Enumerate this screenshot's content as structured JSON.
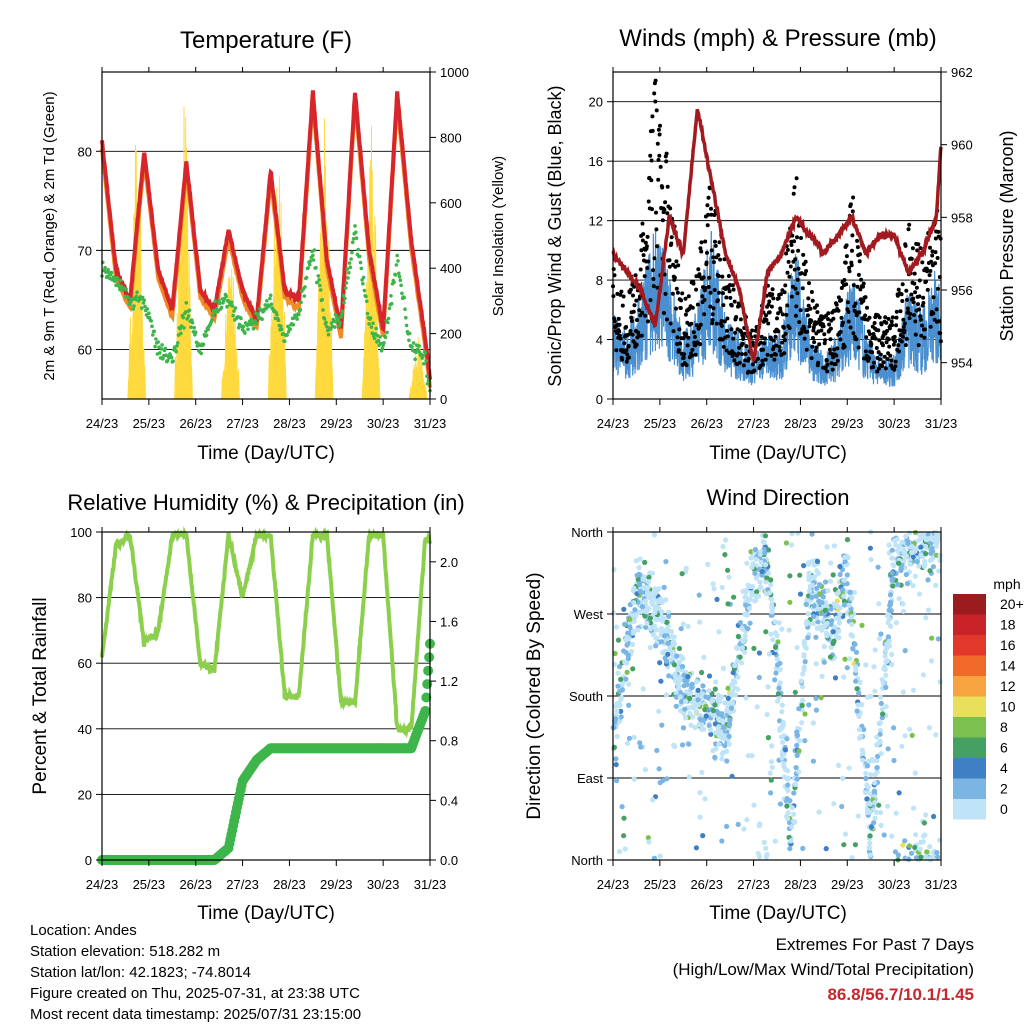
{
  "colors": {
    "red": "#d7262b",
    "orange": "#f08a24",
    "green": "#3db54a",
    "yellow": "#ffd93d",
    "black": "#000000",
    "blue": "#4a90d0",
    "maroon": "#a01a1f",
    "lightgreen": "#8ccf4d"
  },
  "x_ticks": [
    "24/23",
    "25/23",
    "26/23",
    "27/23",
    "28/23",
    "29/23",
    "30/23",
    "31/23"
  ],
  "temperature": {
    "title": "Temperature (F)",
    "xlabel": "Time (Day/UTC)",
    "ylabel_left": "2m & 9m T (Red, Orange) & 2m Td (Green)",
    "ylabel_right": "Solar Insolation (Yellow)",
    "left_ticks": [
      "60",
      "70",
      "80"
    ],
    "right_ticks": [
      "0",
      "200",
      "400",
      "600",
      "800",
      "1000"
    ]
  },
  "winds": {
    "title": "Winds (mph) & Pressure (mb)",
    "xlabel": "Time (Day/UTC)",
    "ylabel_left": "Sonic/Prop Wind & Gust (Blue, Black)",
    "ylabel_right": "Station Pressure (Maroon)",
    "left_ticks": [
      "0",
      "4",
      "8",
      "12",
      "16",
      "20"
    ],
    "right_ticks": [
      "954",
      "956",
      "958",
      "960",
      "962"
    ]
  },
  "humidity": {
    "title": "Relative Humidity (%) & Precipitation (in)",
    "xlabel": "Time (Day/UTC)",
    "ylabel_left": "Percent & Total Rainfall",
    "left_ticks": [
      "0",
      "20",
      "40",
      "60",
      "80",
      "100"
    ],
    "right_ticks": [
      "0.0",
      "0.4",
      "0.8",
      "1.2",
      "1.6",
      "2.0"
    ]
  },
  "direction": {
    "title": "Wind Direction",
    "xlabel": "Time (Day/UTC)",
    "ylabel_left": "Direction (Colored By Speed)",
    "dir_ticks": [
      "North",
      "East",
      "South",
      "West",
      "North"
    ],
    "legend_title": "mph",
    "legend_labels": [
      "20+",
      "18",
      "16",
      "14",
      "12",
      "10",
      "8",
      "6",
      "4",
      "2",
      "0"
    ],
    "legend_colors": [
      "#9b1b1e",
      "#c9232a",
      "#e1382b",
      "#f06a2a",
      "#f7a440",
      "#e8e05a",
      "#7cc04f",
      "#45a163",
      "#3f7fc4",
      "#7ab5e4",
      "#bfe3f7"
    ]
  },
  "info_lines": [
    "Location: Andes",
    "Station elevation: 518.282 m",
    "Station lat/lon: 42.1823; -74.8014",
    "Figure created on Thu, 2025-07-31, at 23:38 UTC",
    "Most recent data timestamp: 2025/07/31 23:15:00"
  ],
  "extremes": {
    "title": "Extremes For Past 7 Days",
    "subtitle": "(High/Low/Max Wind/Total Precipitation)",
    "values": "86.8/56.7/10.1/1.45"
  },
  "chart_data": [
    {
      "type": "line",
      "name": "temperature",
      "x": [
        0,
        0.3,
        0.6,
        0.9,
        1.2,
        1.5,
        1.8,
        2.1,
        2.4,
        2.7,
        3.0,
        3.3,
        3.6,
        3.9,
        4.2,
        4.5,
        4.8,
        5.1,
        5.4,
        5.7,
        6.0,
        6.3,
        6.6,
        6.9,
        7.0
      ],
      "series": [
        {
          "values": [
            81,
            68,
            65,
            80,
            68,
            64,
            79,
            66,
            64,
            72,
            66,
            63,
            78,
            66,
            65,
            86,
            69,
            62,
            86,
            70,
            62,
            86,
            71,
            61,
            57
          ]
        },
        {
          "values": [
            68,
            67,
            65,
            65,
            60,
            59,
            64,
            60,
            64,
            65,
            62,
            63,
            65,
            61,
            64,
            70,
            62,
            63,
            72,
            63,
            60,
            69,
            60,
            59,
            56
          ]
        }
      ],
      "ylim": [
        55,
        88
      ],
      "y2lim": [
        0,
        1000
      ]
    },
    {
      "type": "line",
      "name": "winds",
      "x": [
        0,
        0.3,
        0.6,
        0.9,
        1.2,
        1.5,
        1.8,
        2.1,
        2.4,
        2.7,
        3.0,
        3.3,
        3.6,
        3.9,
        4.2,
        4.5,
        4.8,
        5.1,
        5.4,
        5.7,
        6.0,
        6.3,
        6.6,
        6.9,
        7.0
      ],
      "series": [
        {
          "values": [
            4,
            3,
            5,
            8,
            6,
            3,
            4,
            8,
            4,
            3,
            2,
            3,
            3,
            7,
            3,
            2,
            3,
            6,
            3,
            2,
            2,
            5,
            4,
            6,
            5
          ]
        },
        {
          "values": [
            9,
            6,
            10,
            20,
            14,
            6,
            8,
            14,
            9,
            6,
            4,
            7,
            7,
            14,
            7,
            5,
            6,
            13,
            6,
            5,
            5,
            11,
            9,
            12,
            11
          ]
        }
      ],
      "pressure": [
        957,
        956.5,
        956,
        955,
        958,
        957,
        961,
        959,
        957,
        956,
        954,
        956.5,
        957,
        958,
        957.5,
        957,
        957.5,
        958,
        957,
        957.5,
        957.5,
        956.5,
        957,
        958,
        960
      ],
      "ylim": [
        0,
        22
      ],
      "y2lim": [
        953,
        962
      ]
    },
    {
      "type": "line",
      "name": "humidity_precip",
      "x": [
        0,
        0.3,
        0.6,
        0.9,
        1.2,
        1.5,
        1.8,
        2.1,
        2.4,
        2.7,
        3.0,
        3.3,
        3.6,
        3.9,
        4.2,
        4.5,
        4.8,
        5.1,
        5.4,
        5.7,
        6.0,
        6.3,
        6.6,
        6.9,
        7.0
      ],
      "series": [
        {
          "values": [
            62,
            96,
            99,
            66,
            70,
            99,
            99,
            60,
            58,
            99,
            80,
            99,
            99,
            50,
            50,
            99,
            99,
            48,
            48,
            99,
            99,
            40,
            40,
            98,
            97
          ]
        },
        {
          "values": [
            0,
            0,
            0,
            0,
            0,
            0,
            0,
            0,
            0,
            0.08,
            0.53,
            0.67,
            0.75,
            0.75,
            0.75,
            0.75,
            0.75,
            0.75,
            0.75,
            0.75,
            0.75,
            0.75,
            0.75,
            1.0,
            1.45
          ]
        }
      ],
      "ylim": [
        0,
        100
      ],
      "y2lim": [
        0,
        2.2
      ]
    },
    {
      "type": "scatter",
      "name": "wind_direction",
      "x_range": [
        0,
        7
      ],
      "y_range": [
        0,
        360
      ],
      "dir_labels": [
        "North",
        "East",
        "South",
        "West",
        "North"
      ]
    }
  ]
}
